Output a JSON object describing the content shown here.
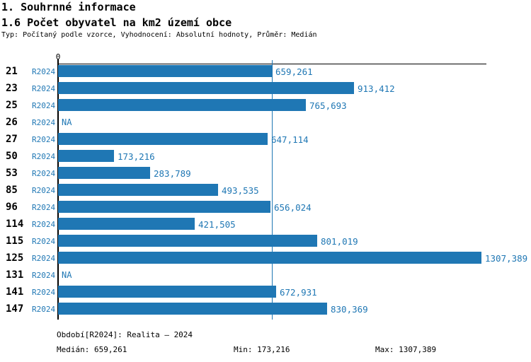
{
  "header": {
    "title": "1. Souhrnné informace",
    "subtitle": "1.6 Počet obyvatel na km2 území obce",
    "meta": "Typ: Počítaný podle vzorce, Vyhodnocení: Absolutní hodnoty, Průměr: Medián"
  },
  "colors": {
    "bar": "#1f77b4",
    "blue_text": "#1f77b4",
    "axis": "#000000"
  },
  "chart_data": {
    "type": "bar",
    "orientation": "horizontal",
    "title": "1.6 Počet obyvatel na km2 území obce",
    "categories": [
      "21",
      "23",
      "25",
      "26",
      "27",
      "50",
      "53",
      "85",
      "96",
      "114",
      "115",
      "125",
      "131",
      "141",
      "147"
    ],
    "series_label": "R2024",
    "values": [
      659.261,
      913.412,
      765.693,
      null,
      647.114,
      173.216,
      283.789,
      493.535,
      656.024,
      421.505,
      801.019,
      1307.389,
      null,
      672.931,
      830.369
    ],
    "value_labels": [
      "659,261",
      "913,412",
      "765,693",
      "NA",
      "647,114",
      "173,216",
      "283,789",
      "493,535",
      "656,024",
      "421,505",
      "801,019",
      "1307,389",
      "NA",
      "672,931",
      "830,369"
    ],
    "na_label": "NA",
    "xlim": [
      0,
      1307.389
    ],
    "zero_label": "0",
    "median_value": 659.261,
    "grid": false,
    "legend": false
  },
  "footer": {
    "period": "Období[R2024]: Realita – 2024",
    "median": "Medián: 659,261",
    "min": "Min: 173,216",
    "max": "Max: 1307,389"
  }
}
